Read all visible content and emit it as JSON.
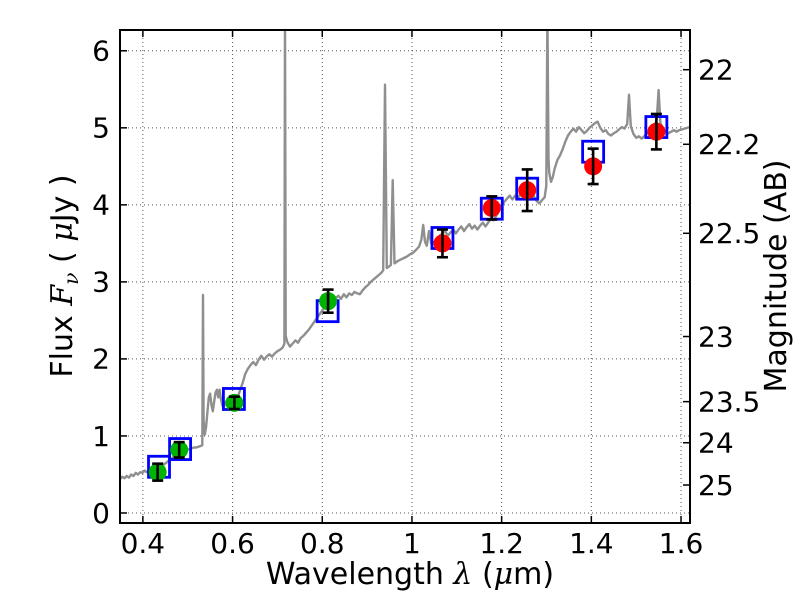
{
  "figure": {
    "background": "#ffffff",
    "frame_color": "#000000",
    "grid_color": "#555555",
    "spectrum_color": "#8f8f8f",
    "errorbar_color": "#000000"
  },
  "chart_data": {
    "type": "line",
    "title": "",
    "xlabel_segments": [
      {
        "t": "Wavelength  "
      },
      {
        "t": "λ",
        "math": true
      },
      {
        "t": " ("
      },
      {
        "t": "μ",
        "math": true
      },
      {
        "t": "m)"
      }
    ],
    "ylabel_left_segments": [
      {
        "t": "Flux  "
      },
      {
        "t": "F",
        "math": true
      },
      {
        "t": "ν",
        "math": true,
        "sub": true
      },
      {
        "t": "  ( "
      },
      {
        "t": "μ",
        "math": true
      },
      {
        "t": "Jy )"
      }
    ],
    "ylabel_right": "Magnitude (AB)",
    "xlim": [
      0.349,
      1.62
    ],
    "ylim_flux": [
      -0.13,
      6.27
    ],
    "x_ticks": [
      0.4,
      0.6,
      0.8,
      1.0,
      1.2,
      1.4,
      1.6
    ],
    "x_tick_labels": [
      "0.4",
      "0.6",
      "0.8",
      "1",
      "1.2",
      "1.4",
      "1.6"
    ],
    "y_ticks_left": [
      0,
      1,
      2,
      3,
      4,
      5,
      6
    ],
    "y_tick_labels_left": [
      "0",
      "1",
      "2",
      "3",
      "4",
      "5",
      "6"
    ],
    "y_ticks_right_mag": [
      22,
      22.2,
      22.5,
      23,
      23.5,
      24,
      25
    ],
    "y_tick_labels_right": [
      "22",
      "22.2",
      "22.5",
      "23",
      "23.5",
      "24",
      "25"
    ],
    "mag_zeropoint": 23.9,
    "grid": true,
    "legend": "none",
    "series": [
      {
        "name": "model-spectrum",
        "kind": "line",
        "color": "#8f8f8f",
        "points": [
          [
            0.349,
            0.44
          ],
          [
            0.354,
            0.47
          ],
          [
            0.359,
            0.45
          ],
          [
            0.364,
            0.48
          ],
          [
            0.369,
            0.46
          ],
          [
            0.374,
            0.5
          ],
          [
            0.379,
            0.48
          ],
          [
            0.384,
            0.52
          ],
          [
            0.389,
            0.5
          ],
          [
            0.394,
            0.53
          ],
          [
            0.399,
            0.52
          ],
          [
            0.404,
            0.55
          ],
          [
            0.409,
            0.53
          ],
          [
            0.414,
            0.56
          ],
          [
            0.419,
            0.55
          ],
          [
            0.424,
            0.57
          ],
          [
            0.429,
            0.56
          ],
          [
            0.434,
            0.58
          ],
          [
            0.439,
            0.6
          ],
          [
            0.444,
            0.62
          ],
          [
            0.449,
            0.64
          ],
          [
            0.454,
            0.66
          ],
          [
            0.459,
            0.69
          ],
          [
            0.464,
            0.71
          ],
          [
            0.469,
            0.73
          ],
          [
            0.474,
            0.75
          ],
          [
            0.479,
            0.77
          ],
          [
            0.484,
            0.78
          ],
          [
            0.489,
            0.8
          ],
          [
            0.494,
            0.81
          ],
          [
            0.499,
            0.82
          ],
          [
            0.504,
            0.83
          ],
          [
            0.509,
            0.84
          ],
          [
            0.514,
            0.85
          ],
          [
            0.519,
            0.85
          ],
          [
            0.524,
            0.86
          ],
          [
            0.529,
            0.87
          ],
          [
            0.5325,
            0.88
          ],
          [
            0.534,
            2.83
          ],
          [
            0.5355,
            1.2
          ],
          [
            0.538,
            1.02
          ],
          [
            0.541,
            1.12
          ],
          [
            0.544,
            1.32
          ],
          [
            0.547,
            1.5
          ],
          [
            0.55,
            1.55
          ],
          [
            0.553,
            1.4
          ],
          [
            0.556,
            1.32
          ],
          [
            0.559,
            1.45
          ],
          [
            0.562,
            1.56
          ],
          [
            0.565,
            1.6
          ],
          [
            0.568,
            1.5
          ],
          [
            0.571,
            1.6
          ],
          [
            0.574,
            1.48
          ],
          [
            0.577,
            1.4
          ],
          [
            0.58,
            1.36
          ],
          [
            0.583,
            1.42
          ],
          [
            0.586,
            1.45
          ],
          [
            0.589,
            1.41
          ],
          [
            0.592,
            1.45
          ],
          [
            0.595,
            1.43
          ],
          [
            0.598,
            1.46
          ],
          [
            0.601,
            1.48
          ],
          [
            0.604,
            1.45
          ],
          [
            0.607,
            1.47
          ],
          [
            0.61,
            1.5
          ],
          [
            0.613,
            1.53
          ],
          [
            0.616,
            1.58
          ],
          [
            0.619,
            1.63
          ],
          [
            0.622,
            1.68
          ],
          [
            0.625,
            1.74
          ],
          [
            0.628,
            1.8
          ],
          [
            0.634,
            1.87
          ],
          [
            0.64,
            1.92
          ],
          [
            0.646,
            1.96
          ],
          [
            0.652,
            1.92
          ],
          [
            0.658,
            1.99
          ],
          [
            0.664,
            2.04
          ],
          [
            0.67,
            1.99
          ],
          [
            0.676,
            2.03
          ],
          [
            0.682,
            2.06
          ],
          [
            0.688,
            2.03
          ],
          [
            0.694,
            2.07
          ],
          [
            0.7,
            2.1
          ],
          [
            0.706,
            2.12
          ],
          [
            0.712,
            2.15
          ],
          [
            0.7155,
            2.2
          ],
          [
            0.717,
            6.5
          ],
          [
            0.7185,
            2.3
          ],
          [
            0.722,
            2.22
          ],
          [
            0.728,
            2.16
          ],
          [
            0.734,
            2.2
          ],
          [
            0.74,
            2.24
          ],
          [
            0.746,
            2.21
          ],
          [
            0.752,
            2.27
          ],
          [
            0.758,
            2.3
          ],
          [
            0.764,
            2.34
          ],
          [
            0.77,
            2.38
          ],
          [
            0.776,
            2.43
          ],
          [
            0.782,
            2.48
          ],
          [
            0.788,
            2.53
          ],
          [
            0.794,
            2.58
          ],
          [
            0.8,
            2.63
          ],
          [
            0.806,
            2.68
          ],
          [
            0.812,
            2.73
          ],
          [
            0.818,
            2.77
          ],
          [
            0.824,
            2.73
          ],
          [
            0.83,
            2.79
          ],
          [
            0.836,
            2.82
          ],
          [
            0.842,
            2.78
          ],
          [
            0.848,
            2.84
          ],
          [
            0.854,
            2.8
          ],
          [
            0.86,
            2.85
          ],
          [
            0.866,
            2.83
          ],
          [
            0.872,
            2.87
          ],
          [
            0.878,
            2.85
          ],
          [
            0.884,
            2.84
          ],
          [
            0.89,
            2.89
          ],
          [
            0.896,
            2.93
          ],
          [
            0.902,
            2.96
          ],
          [
            0.908,
            3.0
          ],
          [
            0.914,
            3.03
          ],
          [
            0.92,
            3.06
          ],
          [
            0.926,
            3.09
          ],
          [
            0.932,
            3.12
          ],
          [
            0.936,
            3.15
          ],
          [
            0.94,
            5.56
          ],
          [
            0.944,
            3.18
          ],
          [
            0.949,
            3.2
          ],
          [
            0.953,
            3.22
          ],
          [
            0.957,
            4.32
          ],
          [
            0.961,
            3.24
          ],
          [
            0.968,
            3.27
          ],
          [
            0.975,
            3.29
          ],
          [
            0.982,
            3.31
          ],
          [
            0.989,
            3.33
          ],
          [
            0.996,
            3.36
          ],
          [
            1.003,
            3.38
          ],
          [
            1.01,
            3.42
          ],
          [
            1.016,
            3.46
          ],
          [
            1.021,
            3.55
          ],
          [
            1.025,
            3.74
          ],
          [
            1.029,
            3.52
          ],
          [
            1.033,
            3.47
          ],
          [
            1.038,
            3.66
          ],
          [
            1.043,
            3.5
          ],
          [
            1.05,
            3.52
          ],
          [
            1.056,
            3.56
          ],
          [
            1.062,
            3.6
          ],
          [
            1.068,
            3.63
          ],
          [
            1.074,
            3.66
          ],
          [
            1.08,
            3.6
          ],
          [
            1.086,
            3.64
          ],
          [
            1.092,
            3.68
          ],
          [
            1.098,
            3.63
          ],
          [
            1.104,
            3.68
          ],
          [
            1.11,
            3.72
          ],
          [
            1.116,
            3.66
          ],
          [
            1.122,
            3.71
          ],
          [
            1.128,
            3.75
          ],
          [
            1.134,
            3.69
          ],
          [
            1.14,
            3.73
          ],
          [
            1.146,
            3.68
          ],
          [
            1.152,
            3.73
          ],
          [
            1.158,
            3.77
          ],
          [
            1.164,
            3.72
          ],
          [
            1.17,
            3.77
          ],
          [
            1.176,
            3.82
          ],
          [
            1.182,
            3.8
          ],
          [
            1.188,
            3.86
          ],
          [
            1.194,
            3.92
          ],
          [
            1.2,
            3.98
          ],
          [
            1.206,
            4.04
          ],
          [
            1.212,
            4.08
          ],
          [
            1.218,
            4.12
          ],
          [
            1.224,
            4.07
          ],
          [
            1.23,
            4.12
          ],
          [
            1.236,
            4.09
          ],
          [
            1.242,
            4.14
          ],
          [
            1.248,
            4.11
          ],
          [
            1.254,
            4.15
          ],
          [
            1.26,
            4.12
          ],
          [
            1.266,
            4.07
          ],
          [
            1.272,
            4.11
          ],
          [
            1.278,
            4.05
          ],
          [
            1.284,
            4.02
          ],
          [
            1.29,
            4.06
          ],
          [
            1.296,
            4.1
          ],
          [
            1.2995,
            4.25
          ],
          [
            1.302,
            6.5
          ],
          [
            1.3045,
            4.6
          ],
          [
            1.306,
            4.42
          ],
          [
            1.31,
            4.3
          ],
          [
            1.314,
            4.36
          ],
          [
            1.318,
            4.47
          ],
          [
            1.324,
            4.58
          ],
          [
            1.33,
            4.64
          ],
          [
            1.336,
            4.72
          ],
          [
            1.342,
            4.82
          ],
          [
            1.348,
            4.9
          ],
          [
            1.354,
            4.95
          ],
          [
            1.36,
            4.99
          ],
          [
            1.366,
            4.95
          ],
          [
            1.372,
            5.01
          ],
          [
            1.378,
            4.97
          ],
          [
            1.384,
            4.93
          ],
          [
            1.39,
            4.96
          ],
          [
            1.396,
            5.0
          ],
          [
            1.402,
            5.03
          ],
          [
            1.408,
            5.06
          ],
          [
            1.414,
            5.08
          ],
          [
            1.42,
            5.0
          ],
          [
            1.426,
            4.95
          ],
          [
            1.432,
            4.97
          ],
          [
            1.438,
            4.92
          ],
          [
            1.444,
            4.9
          ],
          [
            1.45,
            4.93
          ],
          [
            1.456,
            4.95
          ],
          [
            1.462,
            4.98
          ],
          [
            1.468,
            5.01
          ],
          [
            1.474,
            4.99
          ],
          [
            1.48,
            5.05
          ],
          [
            1.484,
            5.43
          ],
          [
            1.488,
            5.02
          ],
          [
            1.494,
            4.92
          ],
          [
            1.5,
            4.87
          ],
          [
            1.506,
            4.89
          ],
          [
            1.512,
            4.86
          ],
          [
            1.518,
            4.89
          ],
          [
            1.524,
            4.93
          ],
          [
            1.53,
            4.96
          ],
          [
            1.536,
            4.99
          ],
          [
            1.542,
            5.03
          ],
          [
            1.546,
            5.12
          ],
          [
            1.55,
            5.49
          ],
          [
            1.554,
            5.06
          ],
          [
            1.56,
            4.99
          ],
          [
            1.566,
            4.95
          ],
          [
            1.572,
            4.93
          ],
          [
            1.578,
            4.95
          ],
          [
            1.584,
            4.97
          ],
          [
            1.59,
            4.95
          ],
          [
            1.596,
            4.97
          ],
          [
            1.602,
            4.98
          ],
          [
            1.608,
            4.99
          ],
          [
            1.614,
            5.0
          ],
          [
            1.62,
            5.01
          ]
        ]
      },
      {
        "name": "model-photometry-squares",
        "kind": "open-square",
        "color": "#0000ff",
        "points": [
          [
            0.436,
            0.6
          ],
          [
            0.483,
            0.83
          ],
          [
            0.603,
            1.48
          ],
          [
            0.812,
            2.62
          ],
          [
            1.068,
            3.57
          ],
          [
            1.178,
            3.95
          ],
          [
            1.257,
            4.21
          ],
          [
            1.404,
            4.69
          ],
          [
            1.545,
            5.01
          ]
        ]
      },
      {
        "name": "observed-optical-photometry",
        "kind": "filled-circle",
        "color": "#00b300",
        "points": [
          [
            0.433,
            0.53,
            0.11
          ],
          [
            0.481,
            0.82,
            0.1
          ],
          [
            0.604,
            1.43,
            0.08
          ],
          [
            0.813,
            2.75,
            0.15
          ]
        ]
      },
      {
        "name": "observed-infrared-photometry",
        "kind": "filled-circle",
        "color": "#ff0000",
        "points": [
          [
            1.068,
            3.5,
            0.18
          ],
          [
            1.178,
            3.96,
            0.15
          ],
          [
            1.257,
            4.19,
            0.27
          ],
          [
            1.404,
            4.5,
            0.23
          ],
          [
            1.545,
            4.95,
            0.23
          ]
        ]
      }
    ]
  }
}
